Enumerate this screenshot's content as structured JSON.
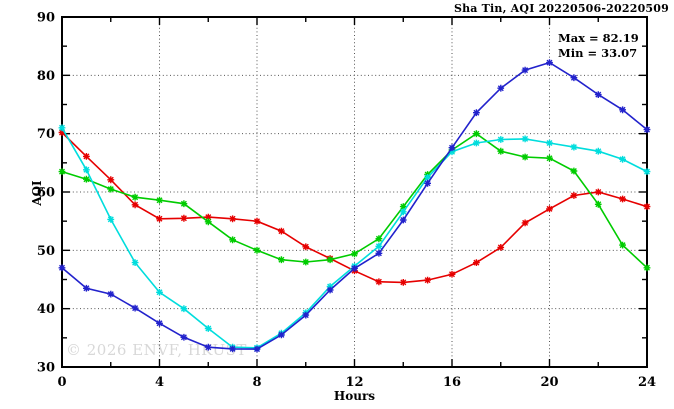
{
  "chart": {
    "title": "Sha Tin, AQI 20220506-20220509",
    "ylabel": "AQI",
    "xlabel": "Hours",
    "watermark": "© 2026 ENVF, HKUST",
    "stats": {
      "max_label": "Max = 82.19",
      "min_label": "Min = 33.07"
    }
  },
  "chart_data": {
    "type": "line",
    "title": "Sha Tin, AQI 20220506-20220509",
    "xlabel": "Hours",
    "ylabel": "AQI",
    "xlim": [
      0,
      24
    ],
    "ylim": [
      30,
      90
    ],
    "x_major_ticks": [
      0,
      4,
      8,
      12,
      16,
      20,
      24
    ],
    "x_minor_ticks": [
      2,
      6,
      10,
      14,
      18,
      22
    ],
    "y_major_ticks": [
      30,
      40,
      50,
      60,
      70,
      80,
      90
    ],
    "y_minor_ticks": [
      35,
      45,
      55,
      65,
      75,
      85
    ],
    "grid": true,
    "legend_position": "none",
    "marker": "asterisk",
    "max_value": 82.19,
    "min_value": 33.07,
    "x": [
      0,
      1,
      2,
      3,
      4,
      5,
      6,
      7,
      8,
      9,
      10,
      11,
      12,
      13,
      14,
      15,
      16,
      17,
      18,
      19,
      20,
      21,
      22,
      23,
      24
    ],
    "series": [
      {
        "name": "red",
        "color": "#e60000",
        "values": [
          70.2,
          66.1,
          62.1,
          57.8,
          55.4,
          55.5,
          55.7,
          55.4,
          55.0,
          53.3,
          50.6,
          48.6,
          46.5,
          44.6,
          44.5,
          44.9,
          45.9,
          47.9,
          50.5,
          54.7,
          57.1,
          59.4,
          60.0,
          58.8,
          57.5
        ]
      },
      {
        "name": "green",
        "color": "#00cc00",
        "values": [
          63.5,
          62.2,
          60.5,
          59.1,
          58.6,
          58.0,
          54.9,
          51.8,
          50.0,
          48.4,
          48.0,
          48.4,
          49.4,
          52.0,
          57.5,
          63.0,
          67.2,
          70.0,
          67.0,
          66.0,
          65.8,
          63.6,
          57.9,
          50.9,
          47.0
        ]
      },
      {
        "name": "cyan",
        "color": "#00dddd",
        "values": [
          71.0,
          63.8,
          55.3,
          47.9,
          42.8,
          40.0,
          36.6,
          33.4,
          33.3,
          35.8,
          39.3,
          43.8,
          47.3,
          50.7,
          56.6,
          62.5,
          66.9,
          68.4,
          69.0,
          69.1,
          68.4,
          67.7,
          67.0,
          65.6,
          63.5
        ]
      },
      {
        "name": "blue",
        "color": "#2222cc",
        "values": [
          47.0,
          43.5,
          42.5,
          40.1,
          37.5,
          35.1,
          33.4,
          33.1,
          33.07,
          35.5,
          38.9,
          43.2,
          46.9,
          49.5,
          55.2,
          61.5,
          67.6,
          73.6,
          77.8,
          80.9,
          82.19,
          79.6,
          76.7,
          74.1,
          70.7
        ]
      }
    ]
  }
}
